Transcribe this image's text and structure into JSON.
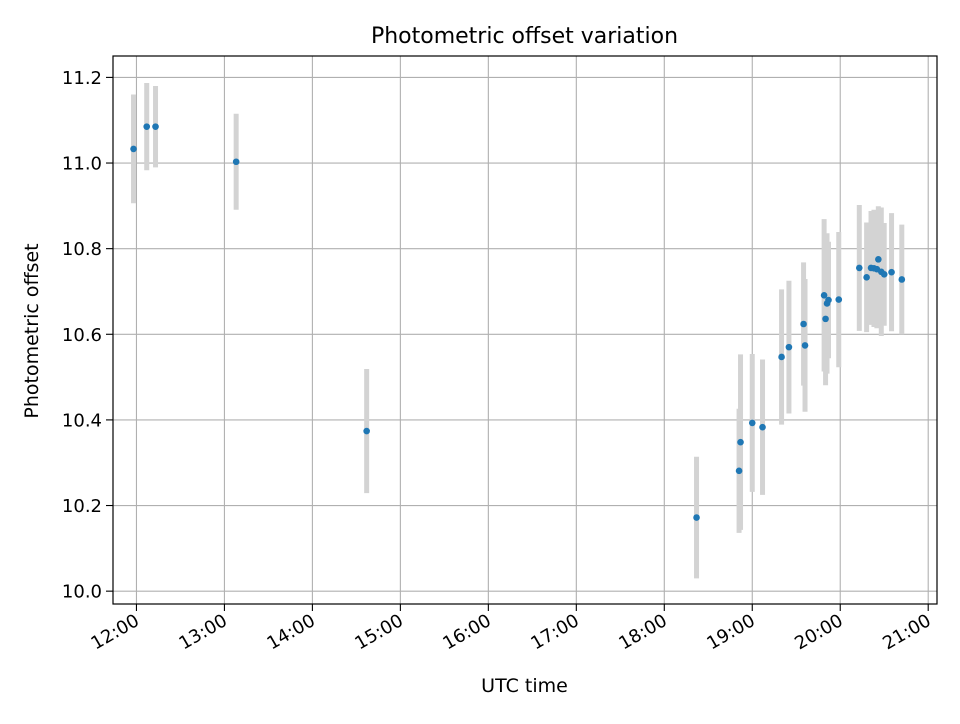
{
  "chart_data": {
    "type": "scatter",
    "title": "Photometric offset variation",
    "xlabel": "UTC time",
    "ylabel": "Photometric offset",
    "x_unit": "UTC hours",
    "xlim": [
      "11:44",
      "21:06"
    ],
    "ylim": [
      9.97,
      11.25
    ],
    "x_ticks": [
      "12:00",
      "13:00",
      "14:00",
      "15:00",
      "16:00",
      "17:00",
      "18:00",
      "19:00",
      "20:00",
      "21:00"
    ],
    "y_ticks": [
      "10.0",
      "10.2",
      "10.4",
      "10.6",
      "10.8",
      "11.0",
      "11.2"
    ],
    "grid": true,
    "colors": {
      "points": "#1f77b4",
      "errorbars": "#d3d3d3",
      "grid": "#b0b0b0"
    },
    "points": [
      {
        "x": "11:58",
        "y": 11.033,
        "err": 0.127
      },
      {
        "x": "12:07",
        "y": 11.085,
        "err": 0.102
      },
      {
        "x": "12:13",
        "y": 11.085,
        "err": 0.095
      },
      {
        "x": "13:08",
        "y": 11.003,
        "err": 0.112
      },
      {
        "x": "14:37",
        "y": 10.374,
        "err": 0.145
      },
      {
        "x": "18:22",
        "y": 10.172,
        "err": 0.142
      },
      {
        "x": "18:51",
        "y": 10.281,
        "err": 0.145
      },
      {
        "x": "18:52",
        "y": 10.348,
        "err": 0.205
      },
      {
        "x": "19:00",
        "y": 10.393,
        "err": 0.161
      },
      {
        "x": "19:07",
        "y": 10.383,
        "err": 0.158
      },
      {
        "x": "19:20",
        "y": 10.547,
        "err": 0.158
      },
      {
        "x": "19:25",
        "y": 10.57,
        "err": 0.155
      },
      {
        "x": "19:35",
        "y": 10.624,
        "err": 0.144
      },
      {
        "x": "19:36",
        "y": 10.574,
        "err": 0.155
      },
      {
        "x": "19:49",
        "y": 10.691,
        "err": 0.178
      },
      {
        "x": "19:50",
        "y": 10.636,
        "err": 0.155
      },
      {
        "x": "19:51",
        "y": 10.672,
        "err": 0.164
      },
      {
        "x": "19:52",
        "y": 10.68,
        "err": 0.136
      },
      {
        "x": "19:59",
        "y": 10.681,
        "err": 0.158
      },
      {
        "x": "20:13",
        "y": 10.755,
        "err": 0.147
      },
      {
        "x": "20:18",
        "y": 10.733,
        "err": 0.128
      },
      {
        "x": "20:21",
        "y": 10.755,
        "err": 0.133
      },
      {
        "x": "20:23",
        "y": 10.754,
        "err": 0.137
      },
      {
        "x": "20:25",
        "y": 10.752,
        "err": 0.138
      },
      {
        "x": "20:26",
        "y": 10.775,
        "err": 0.124
      },
      {
        "x": "20:28",
        "y": 10.746,
        "err": 0.15
      },
      {
        "x": "20:30",
        "y": 10.74,
        "err": 0.12
      },
      {
        "x": "20:35",
        "y": 10.745,
        "err": 0.138
      },
      {
        "x": "20:42",
        "y": 10.728,
        "err": 0.128
      }
    ]
  }
}
